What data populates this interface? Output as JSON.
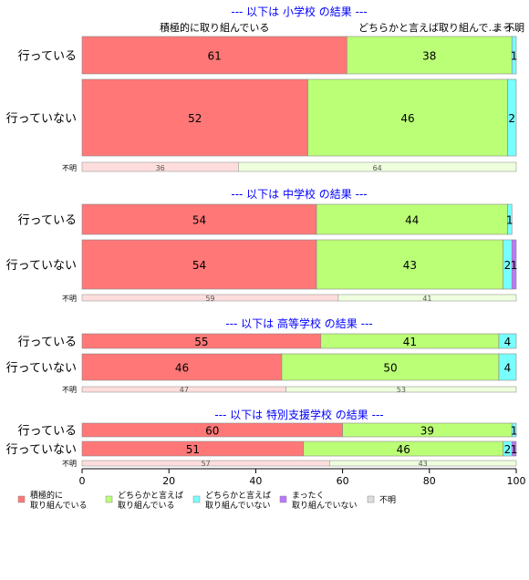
{
  "chart_data": {
    "type": "bar",
    "orientation": "horizontal",
    "stacked": true,
    "xlim": [
      0,
      100
    ],
    "x_ticks": [
      "0",
      "20",
      "40",
      "60",
      "80",
      "100"
    ],
    "series": [
      {
        "name": "積極的に\n取り組んでいる",
        "color": "#ff7777"
      },
      {
        "name": "どちらかと言えば\n取り組んでいる",
        "color": "#bbff77"
      },
      {
        "name": "どちらかと言えば\n取り組んでいない",
        "color": "#77ffff"
      },
      {
        "name": "まったく\n取り組んでいない",
        "color": "#bb77ff"
      },
      {
        "name": "不明",
        "color": "#dddddd"
      }
    ],
    "top_header_labels": [
      "積極的に取り組んでいる",
      "どちらかと言えば取り組んで...",
      "まっ...",
      "不明"
    ],
    "panels": [
      {
        "title": "--- 以下は 小学校 の結果 ---",
        "rows": [
          {
            "label": "行っている",
            "values": [
              61,
              38,
              1,
              0,
              0
            ]
          },
          {
            "label": "行っていない",
            "values": [
              52,
              46,
              2,
              0,
              0
            ]
          }
        ],
        "unknown": {
          "label": "不明",
          "values": [
            36,
            64
          ]
        }
      },
      {
        "title": "--- 以下は 中学校 の結果 ---",
        "rows": [
          {
            "label": "行っている",
            "values": [
              54,
              44,
              1,
              0,
              0
            ]
          },
          {
            "label": "行っていない",
            "values": [
              54,
              43,
              2,
              1,
              0
            ]
          }
        ],
        "unknown": {
          "label": "不明",
          "values": [
            59,
            41
          ]
        }
      },
      {
        "title": "--- 以下は 高等学校 の結果 ---",
        "rows": [
          {
            "label": "行っている",
            "values": [
              55,
              41,
              4,
              0,
              0
            ]
          },
          {
            "label": "行っていない",
            "values": [
              46,
              50,
              4,
              0,
              0
            ]
          }
        ],
        "unknown": {
          "label": "不明",
          "values": [
            47,
            53
          ]
        }
      },
      {
        "title": "--- 以下は 特別支援学校 の結果 ---",
        "rows": [
          {
            "label": "行っている",
            "values": [
              60,
              39,
              1,
              0,
              0
            ]
          },
          {
            "label": "行っていない",
            "values": [
              51,
              46,
              2,
              1,
              0
            ]
          }
        ],
        "unknown": {
          "label": "不明",
          "values": [
            57,
            43
          ]
        }
      }
    ]
  }
}
